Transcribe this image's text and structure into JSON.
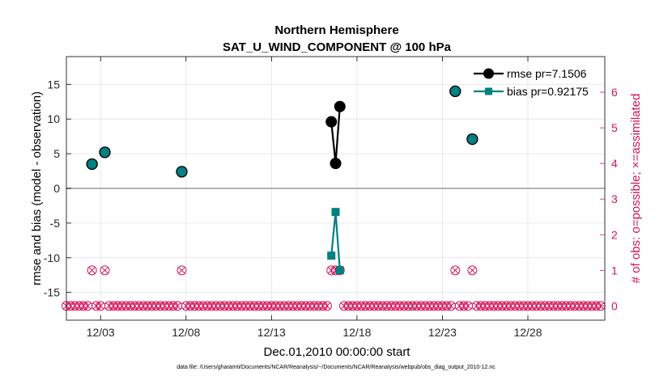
{
  "chart_data": {
    "type": "line",
    "title": "Northern Hemisphere",
    "subtitle": "SAT_U_WIND_COMPONENT @ 100 hPa",
    "xlabel": "Dec.01,2010 00:00:00 start",
    "ylabel": "rmse and bias (model - observation)",
    "y2label": "# of obs: o=possible; ×=assimilated",
    "xlim": [
      0,
      31.5
    ],
    "ylim": [
      -19,
      19
    ],
    "y2lim": [
      -0.4,
      7
    ],
    "x_ticks": [
      2,
      7,
      12,
      17,
      22,
      27
    ],
    "x_tick_labels": [
      "12/03",
      "12/08",
      "12/13",
      "12/18",
      "12/23",
      "12/28"
    ],
    "y_ticks": [
      -15,
      -10,
      -5,
      0,
      5,
      10,
      15
    ],
    "y_tick_labels": [
      "-15",
      "-10",
      "-5",
      "0",
      "5",
      "10",
      "15"
    ],
    "y2_ticks": [
      0,
      1,
      2,
      3,
      4,
      5,
      6
    ],
    "y2_tick_labels": [
      "0",
      "1",
      "2",
      "3",
      "4",
      "5",
      "6"
    ],
    "grid": true,
    "legend_position": "top-right",
    "colors": {
      "rmse": "#000000",
      "bias": "#008080",
      "count": "#d4145a",
      "zero_line": "#b3b3b3"
    },
    "series": [
      {
        "name": "rmse",
        "legend": "rmse pr=7.1506",
        "x": [
          1.5,
          2.25,
          6.75,
          15.5,
          15.75,
          16.0,
          22.75,
          23.75
        ],
        "values": [
          3.5,
          5.2,
          2.4,
          9.6,
          3.6,
          11.8,
          14.0,
          7.1
        ],
        "segments": [
          [
            3,
            4,
            5
          ]
        ]
      },
      {
        "name": "bias",
        "legend": "bias pr=0.92175",
        "x": [
          1.5,
          2.25,
          6.75,
          15.5,
          15.75,
          16.0,
          22.75,
          23.75
        ],
        "values": [
          3.5,
          5.2,
          2.4,
          -9.7,
          -3.4,
          -11.8,
          14.0,
          7.1
        ],
        "segments": [
          [
            3,
            4,
            5
          ]
        ]
      }
    ],
    "obs_count": {
      "start": 0.0,
      "step": 0.25,
      "n": 126,
      "nonzero_x": [
        1.5,
        2.25,
        6.75,
        15.5,
        15.75,
        16.0,
        22.75,
        23.75
      ],
      "nonzero_values": [
        1,
        1,
        1,
        1,
        1,
        1,
        1,
        1
      ]
    },
    "footer": "data file: /Users/gharamti/Documents/NCAR/Reanalysis/~/Documents/NCAR/Reanalysis/webpub/obs_diag_output_2010-12.nc"
  }
}
